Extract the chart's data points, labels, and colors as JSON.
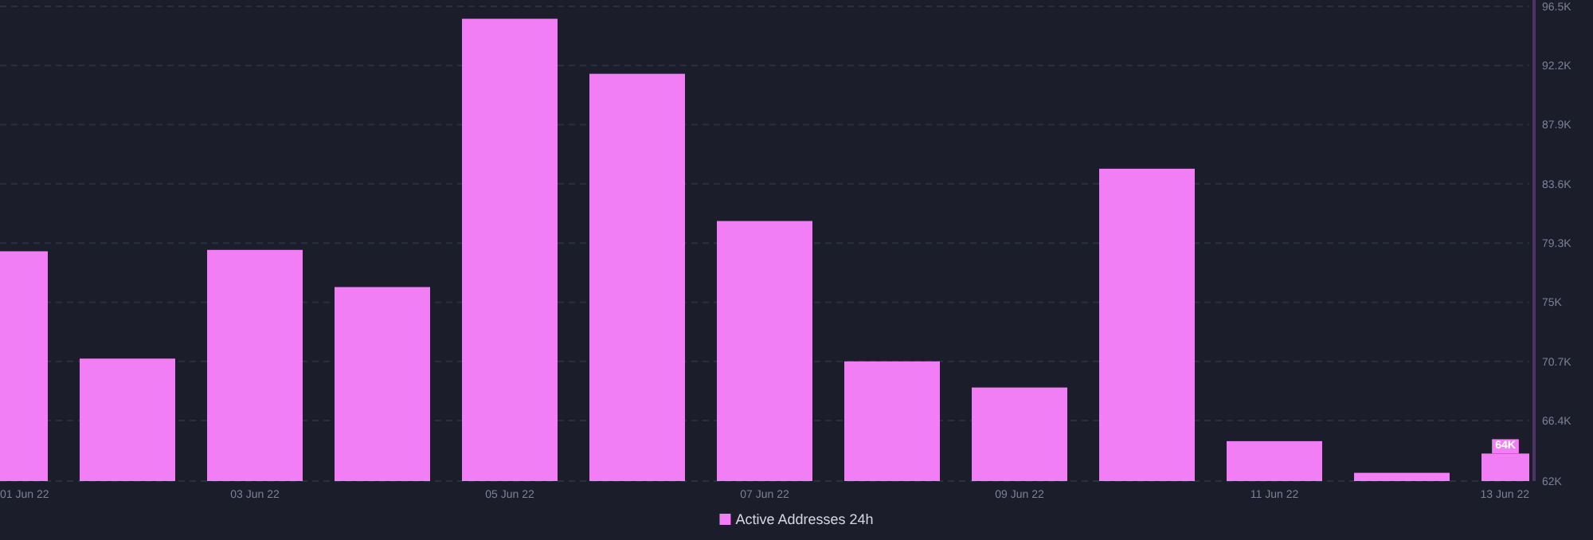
{
  "chart_data": {
    "type": "bar",
    "x": [
      "--06-01",
      "--06-02",
      "--06-03",
      "--06-04",
      "--06-05",
      "--06-06",
      "--06-07",
      "--06-08",
      "--06-09",
      "--06-10",
      "--06-11",
      "--06-12",
      "--06-13"
    ],
    "series": [
      {
        "name": "Active Addresses 24h",
        "color": "#f27ef5",
        "values": [
          78700,
          70900,
          78800,
          76100,
          95600,
          91600,
          80900,
          70700,
          68800,
          84700,
          64900,
          62600,
          64000
        ],
        "value_labels": [
          null,
          null,
          null,
          null,
          null,
          null,
          null,
          null,
          null,
          null,
          null,
          null,
          "64K"
        ],
        "axis": "y2"
      }
    ],
    "xlim": [
      "--06-01",
      "--06-13"
    ],
    "xticks": [
      {
        "value": "--06-01",
        "label": "01 Jun 22"
      },
      {
        "value": "--06-03",
        "label": "03 Jun 22"
      },
      {
        "value": "--06-05",
        "label": "05 Jun 22"
      },
      {
        "value": "--06-07",
        "label": "07 Jun 22"
      },
      {
        "value": "--06-09",
        "label": "09 Jun 22"
      },
      {
        "value": "--06-11",
        "label": "11 Jun 22"
      },
      {
        "value": "--06-13",
        "label": "13 Jun 22"
      }
    ],
    "y2lim": [
      62000,
      96500
    ],
    "y2ticks": [
      {
        "value": 62000,
        "label": "62K"
      },
      {
        "value": 66400,
        "label": "66.4K"
      },
      {
        "value": 70700,
        "label": "70.7K"
      },
      {
        "value": 75000,
        "label": "75K"
      },
      {
        "value": 79300,
        "label": "79.3K"
      },
      {
        "value": 83600,
        "label": "83.6K"
      },
      {
        "value": 87900,
        "label": "87.9K"
      },
      {
        "value": 92200,
        "label": "92.2K"
      },
      {
        "value": 96500,
        "label": "96.5K"
      }
    ],
    "grid": "y",
    "legend": "bottom"
  }
}
